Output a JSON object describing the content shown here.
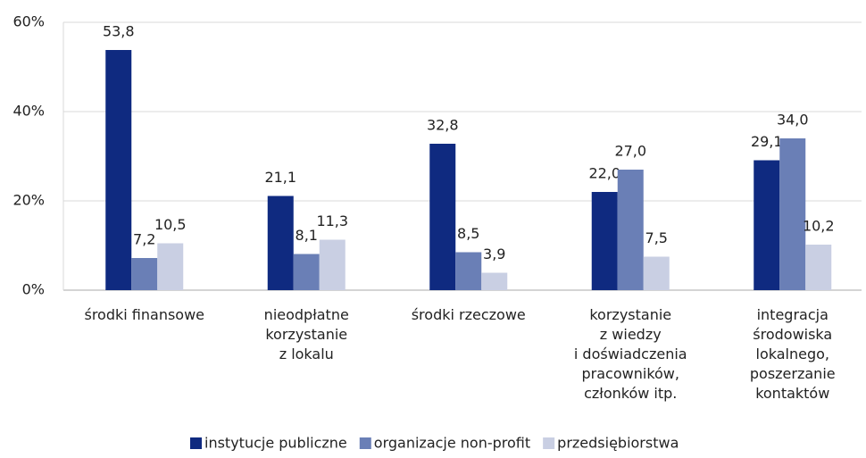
{
  "chart_data": {
    "type": "bar",
    "categories": [
      "środki finansowe",
      "nieodpłatne\nkorzystanie\nz lokalu",
      "środki rzeczowe",
      "korzystanie\nz wiedzy\ni doświadczenia\npracowników,\nczłonków itp.",
      "integracja\nśrodowiska\nlokalnego,\nposzerzanie\nkontaktów"
    ],
    "series": [
      {
        "name": "instytucje publiczne",
        "color": "#0f2a80",
        "values": [
          53.8,
          21.1,
          32.8,
          22.0,
          29.1
        ],
        "value_labels": [
          "53,8",
          "21,1",
          "32,8",
          "22,0",
          "29,1"
        ]
      },
      {
        "name": "organizacje non-profit",
        "color": "#6a7fb6",
        "values": [
          7.2,
          8.1,
          8.5,
          27.0,
          34.0
        ],
        "value_labels": [
          "7,2",
          "8,1",
          "8,5",
          "27,0",
          "34,0"
        ]
      },
      {
        "name": "przedsiębiorstwa",
        "color": "#c9cfe3",
        "values": [
          10.5,
          11.3,
          3.9,
          7.5,
          10.2
        ],
        "value_labels": [
          "10,5",
          "11,3",
          "3,9",
          "7,5",
          "10,2"
        ]
      }
    ],
    "ylim": [
      0,
      60
    ],
    "yticks": [
      {
        "value": 0,
        "label": "0%"
      },
      {
        "value": 20,
        "label": "20%"
      },
      {
        "value": 40,
        "label": "40%"
      },
      {
        "value": 60,
        "label": "60%"
      }
    ],
    "grid": true,
    "legend": "bottom"
  }
}
